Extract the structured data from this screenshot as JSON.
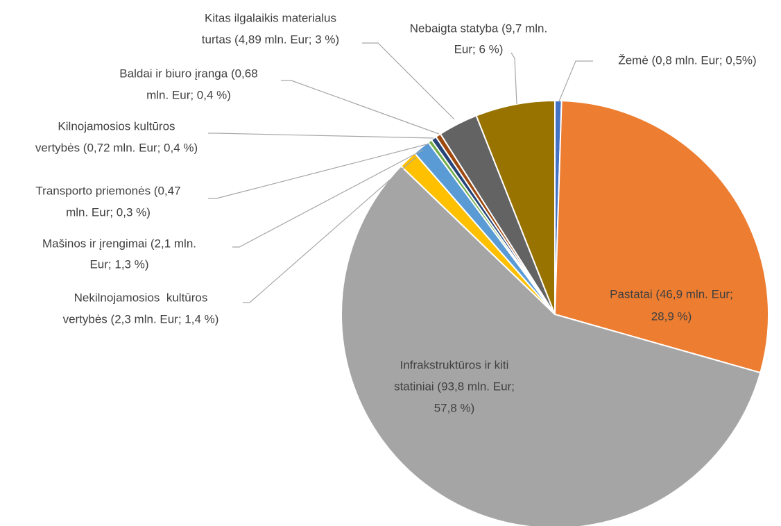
{
  "chart_data": {
    "type": "pie",
    "categories": [
      [
        "Žemė (0,8 mln. Eur; 0,5%)"
      ],
      [
        "Pastatai (46,9 mln. Eur;",
        "28,9 %)"
      ],
      [
        "Infrakstruktūros ir kiti",
        "statiniai (93,8 mln. Eur;",
        "57,8 %)"
      ],
      [
        "Nekilnojamosios  kultūros",
        "vertybės (2,3 mln. Eur; 1,4 %)"
      ],
      [
        "Mašinos ir įrengimai (2,1 mln.",
        "Eur; 1,3 %)"
      ],
      [
        "Transporto priemonės (0,47",
        "mln. Eur; 0,3 %)"
      ],
      [
        "Kilnojamosios kultūros",
        "vertybės (0,72 mln. Eur; 0,4 %)"
      ],
      [
        "Baldai ir biuro įranga (0,68",
        "mln. Eur; 0,4 %)"
      ],
      [
        "Kitas ilgalaikis materialus",
        "turtas (4,89 mln. Eur; 3 %)"
      ],
      [
        "Nebaigta statyba (9,7 mln.",
        "Eur; 6 %)"
      ]
    ],
    "values": [
      0.5,
      28.9,
      57.8,
      1.4,
      1.3,
      0.3,
      0.4,
      0.4,
      3,
      6
    ],
    "colors": [
      "#4472c4",
      "#ed7d31",
      "#a5a5a5",
      "#ffc000",
      "#5b9bd5",
      "#70ad47",
      "#264478",
      "#9e480e",
      "#636363",
      "#997300"
    ]
  }
}
